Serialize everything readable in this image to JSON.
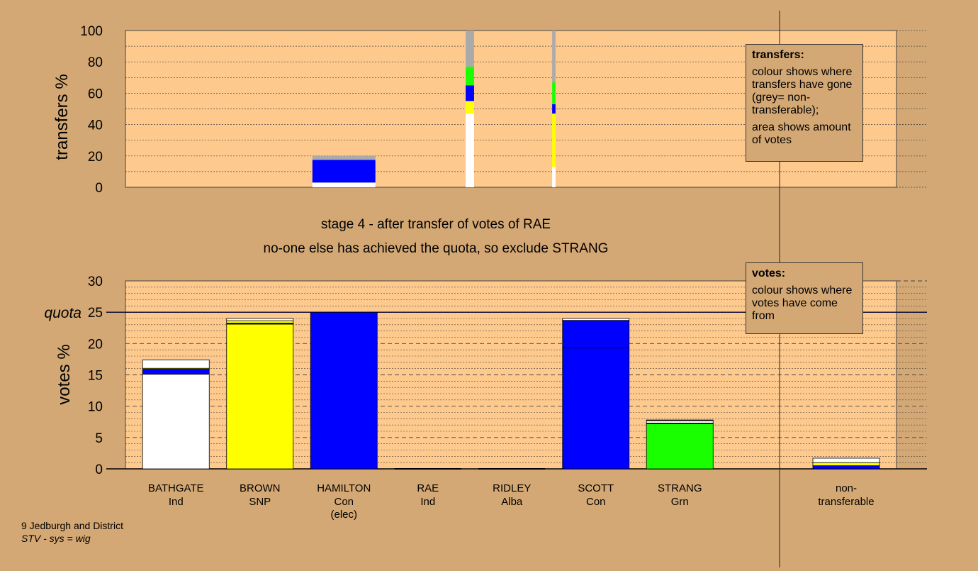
{
  "page": {
    "stage_line": "stage 4 - after transfer of votes of RAE",
    "action_line": "no-one else has achieved the quota, so exclude STRANG",
    "footer_ward": "9 Jedburgh and District",
    "footer_system": "STV - sys = wig"
  },
  "legends": {
    "transfers": {
      "title": "transfers:",
      "line1": "colour shows where transfers have gone (grey= non-transferable);",
      "line2": "area shows amount of votes"
    },
    "votes": {
      "title": "votes:",
      "line1": "colour shows where votes have come from"
    }
  },
  "colors": {
    "background": "#d4a874",
    "plot_bg": "#fdc98d",
    "Ind": "#ffffff",
    "SNP": "#ffff00",
    "Con": "#0000ff",
    "Grn": "#19ff00",
    "Alba": "#000000",
    "NT": "#aaaaaa"
  },
  "chart_data": [
    {
      "type": "bar",
      "name": "transfers",
      "ylabel": "transfers %",
      "ylim": [
        0,
        100
      ],
      "yticks": [
        0,
        20,
        40,
        60,
        80,
        100
      ],
      "bars": [
        {
          "slot": 2,
          "width": 0.75,
          "segments": [
            {
              "party": "Ind",
              "value": 3
            },
            {
              "party": "Con",
              "value": 14.5
            },
            {
              "party": "NT",
              "value": 2.5
            }
          ]
        },
        {
          "slot": 3.5,
          "width": 0.1,
          "segments": [
            {
              "party": "Ind",
              "value": 47
            },
            {
              "party": "SNP",
              "value": 8
            },
            {
              "party": "Con",
              "value": 10
            },
            {
              "party": "Grn",
              "value": 12
            },
            {
              "party": "NT",
              "value": 23
            }
          ]
        },
        {
          "slot": 4.5,
          "width": 0.04,
          "segments": [
            {
              "party": "Ind",
              "value": 13
            },
            {
              "party": "SNP",
              "value": 34
            },
            {
              "party": "Con",
              "value": 6
            },
            {
              "party": "Grn",
              "value": 14
            },
            {
              "party": "NT",
              "value": 33
            }
          ]
        }
      ]
    },
    {
      "type": "bar",
      "name": "votes",
      "ylabel": "votes %",
      "quota_label": "quota",
      "quota": 25,
      "ylim": [
        0,
        30
      ],
      "yticks": [
        0,
        5,
        10,
        15,
        20,
        25,
        30
      ],
      "candidates": [
        {
          "name": "BATHGATE",
          "party": "Ind",
          "note": "",
          "segments": [
            {
              "party": "Ind",
              "value": 15.1
            },
            {
              "party": "Con",
              "value": 0.8
            },
            {
              "party": "SNP",
              "value": 0.15
            },
            {
              "party": "Ind",
              "value": 1.35
            }
          ]
        },
        {
          "name": "BROWN",
          "party": "SNP",
          "note": "",
          "segments": [
            {
              "party": "SNP",
              "value": 23.1
            },
            {
              "party": "Alba",
              "value": 0.15
            },
            {
              "party": "SNP",
              "value": 0.4
            },
            {
              "party": "Ind",
              "value": 0.35
            }
          ]
        },
        {
          "name": "HAMILTON",
          "party": "Con",
          "note": "(elec)",
          "segments": [
            {
              "party": "Con",
              "value": 25
            }
          ]
        },
        {
          "name": "RAE",
          "party": "Ind",
          "note": "",
          "segments": []
        },
        {
          "name": "RIDLEY",
          "party": "Alba",
          "note": "",
          "segments": []
        },
        {
          "name": "SCOTT",
          "party": "Con",
          "note": "",
          "segments": [
            {
              "party": "Con",
              "value": 19.3
            },
            {
              "party": "Con",
              "value": 4.4
            },
            {
              "party": "Ind",
              "value": 0.3
            }
          ]
        },
        {
          "name": "STRANG",
          "party": "Grn",
          "note": "",
          "segments": [
            {
              "party": "Grn",
              "value": 7.2
            },
            {
              "party": "Alba",
              "value": 0.1
            },
            {
              "party": "Ind",
              "value": 0.4
            },
            {
              "party": "Alba",
              "value": 0.1
            }
          ]
        }
      ],
      "nontransferable": {
        "label": "non-transferable",
        "segments": [
          {
            "party": "Con",
            "value": 0.5
          },
          {
            "party": "SNP",
            "value": 0.5
          },
          {
            "party": "Ind",
            "value": 0.7
          }
        ]
      }
    }
  ]
}
